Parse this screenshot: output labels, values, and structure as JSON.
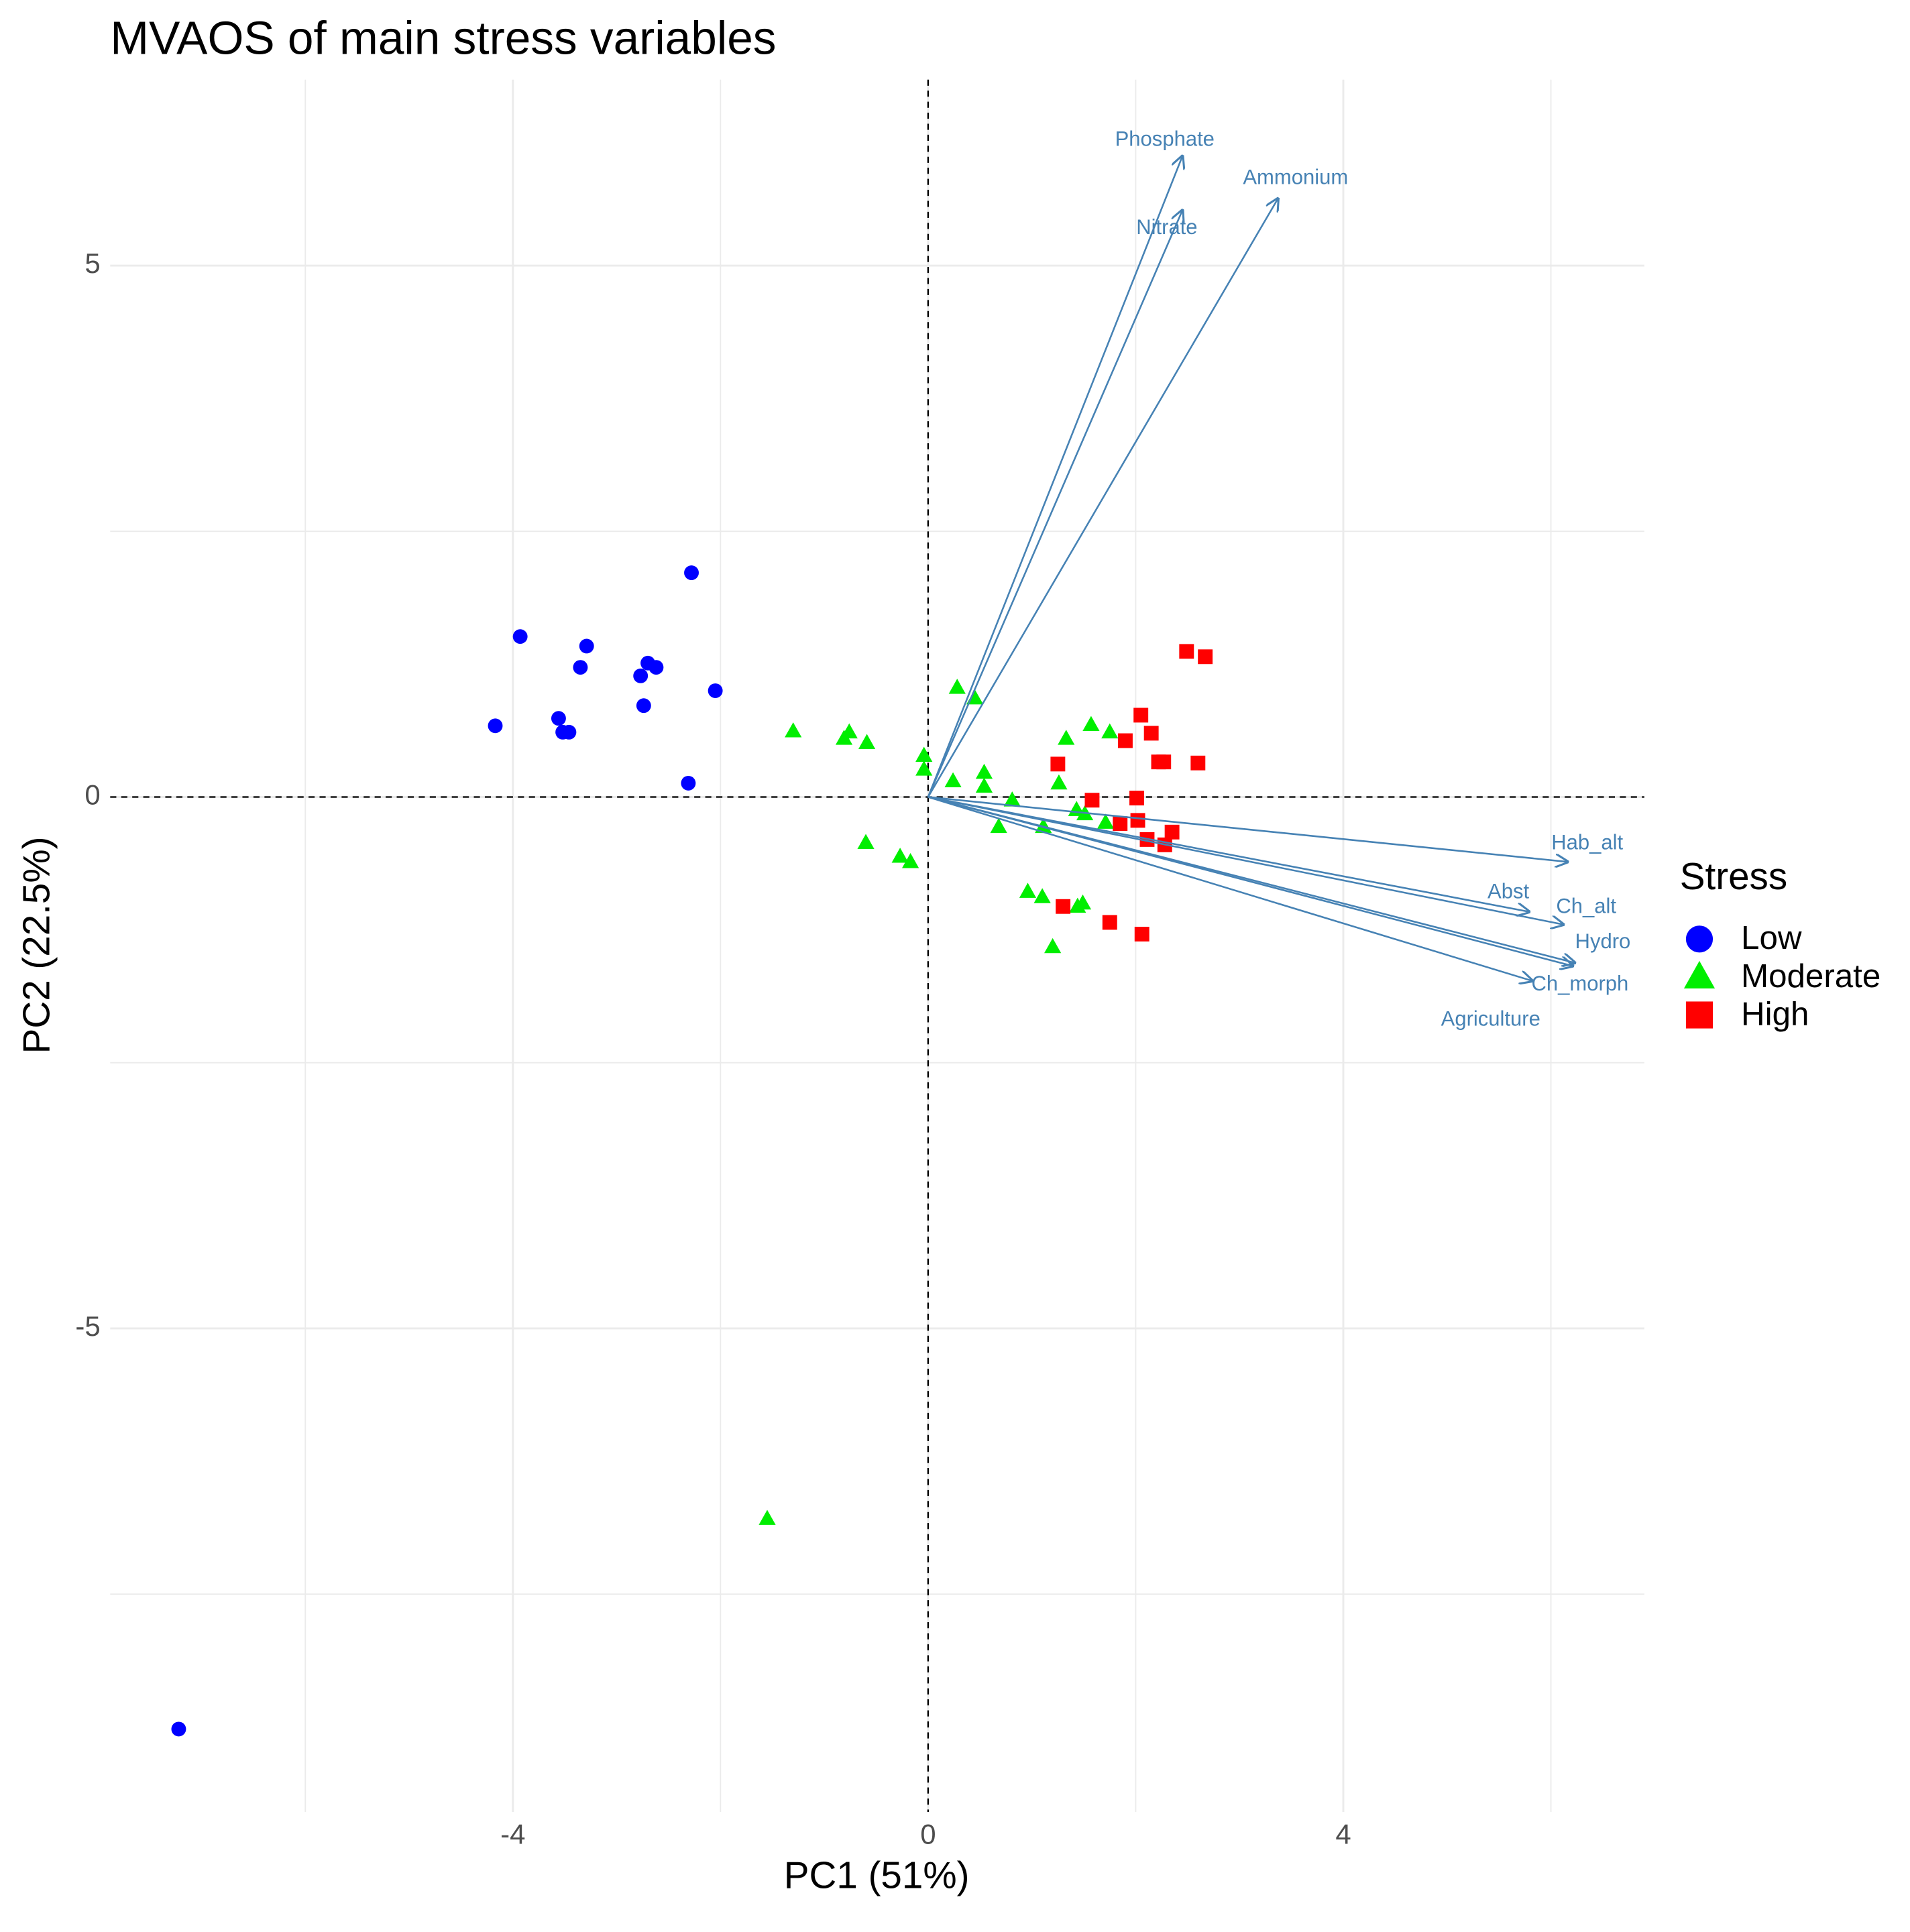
{
  "chart_data": {
    "type": "biplot",
    "title": "MVAOS of main stress variables",
    "x_label": "PC1 (51%)",
    "y_label": "PC2 (22.5%)",
    "legend_title": "Stress",
    "legend_position": "right",
    "grid": true,
    "xlim": [
      -7.88,
      6.9
    ],
    "ylim": [
      -9.55,
      6.75
    ],
    "xticks": [
      -4,
      0,
      4
    ],
    "yticks": [
      -5,
      0,
      5
    ],
    "x_minor_grid": [
      -6,
      -2,
      2,
      6
    ],
    "y_minor_grid": [
      -7.5,
      -2.5,
      2.5
    ],
    "series": [
      {
        "name": "Low",
        "color": "#0000ff",
        "marker": "circle",
        "x": [
          -2.28,
          -3.93,
          -3.29,
          -3.35,
          -2.7,
          -2.62,
          -2.77,
          -2.05,
          -2.74,
          -4.17,
          -3.56,
          -3.46,
          -3.52,
          -2.31,
          -7.22
        ],
        "values": [
          2.11,
          1.51,
          1.42,
          1.22,
          1.26,
          1.22,
          1.14,
          1.0,
          0.86,
          0.67,
          0.74,
          0.61,
          0.61,
          0.13,
          -8.77
        ]
      },
      {
        "name": "Moderate",
        "color": "#00ee00",
        "marker": "triangle",
        "x": [
          -1.3,
          -0.81,
          -0.76,
          -0.59,
          -0.04,
          -0.04,
          0.28,
          0.45,
          0.24,
          0.54,
          0.54,
          0.81,
          1.33,
          1.57,
          1.75,
          1.26,
          1.43,
          1.51,
          1.71,
          1.11,
          0.68,
          -0.6,
          -0.27,
          -0.17,
          0.96,
          1.1,
          1.44,
          1.49,
          1.2,
          -1.55
        ],
        "values": [
          0.62,
          0.55,
          0.61,
          0.51,
          0.39,
          0.26,
          1.03,
          0.93,
          0.15,
          0.23,
          0.1,
          -0.03,
          0.55,
          0.68,
          0.61,
          0.13,
          -0.12,
          -0.16,
          -0.24,
          -0.28,
          -0.28,
          -0.43,
          -0.56,
          -0.61,
          -0.89,
          -0.94,
          -1.03,
          -1.0,
          -1.41,
          -6.79
        ]
      },
      {
        "name": "High",
        "color": "#ff0000",
        "marker": "square",
        "x": [
          2.49,
          2.67,
          2.05,
          1.9,
          2.15,
          1.25,
          2.22,
          2.27,
          2.6,
          1.58,
          2.01,
          2.02,
          1.85,
          2.35,
          2.11,
          2.28,
          1.3,
          1.75,
          2.06
        ],
        "values": [
          1.37,
          1.32,
          0.77,
          0.53,
          0.6,
          0.31,
          0.33,
          0.33,
          0.32,
          -0.03,
          -0.01,
          -0.22,
          -0.25,
          -0.33,
          -0.4,
          -0.45,
          -1.03,
          -1.18,
          -1.29
        ]
      }
    ],
    "arrow_color": "#4682b4",
    "loadings": [
      {
        "name": "Phosphate",
        "x": 2.45,
        "y": 6.03,
        "label_x": 2.28,
        "label_y": 6.18
      },
      {
        "name": "Nitrate",
        "x": 2.45,
        "y": 5.52,
        "label_x": 2.3,
        "label_y": 5.35
      },
      {
        "name": "Ammonium",
        "x": 3.37,
        "y": 5.63,
        "label_x": 3.54,
        "label_y": 5.82
      },
      {
        "name": "Hab_alt",
        "x": 6.16,
        "y": -0.61,
        "label_x": 6.35,
        "label_y": -0.44
      },
      {
        "name": "Abst",
        "x": 5.79,
        "y": -1.08,
        "label_x": 5.59,
        "label_y": -0.9
      },
      {
        "name": "Ch_alt",
        "x": 6.12,
        "y": -1.2,
        "label_x": 6.34,
        "label_y": -1.04
      },
      {
        "name": "Hydro",
        "x": 6.23,
        "y": -1.56,
        "label_x": 6.5,
        "label_y": -1.37
      },
      {
        "name": "Ch_morph",
        "x": 6.21,
        "y": -1.59,
        "label_x": 6.28,
        "label_y": -1.77
      },
      {
        "name": "Agriculture",
        "x": 5.82,
        "y": -1.73,
        "label_x": 5.42,
        "label_y": -2.1
      }
    ]
  }
}
